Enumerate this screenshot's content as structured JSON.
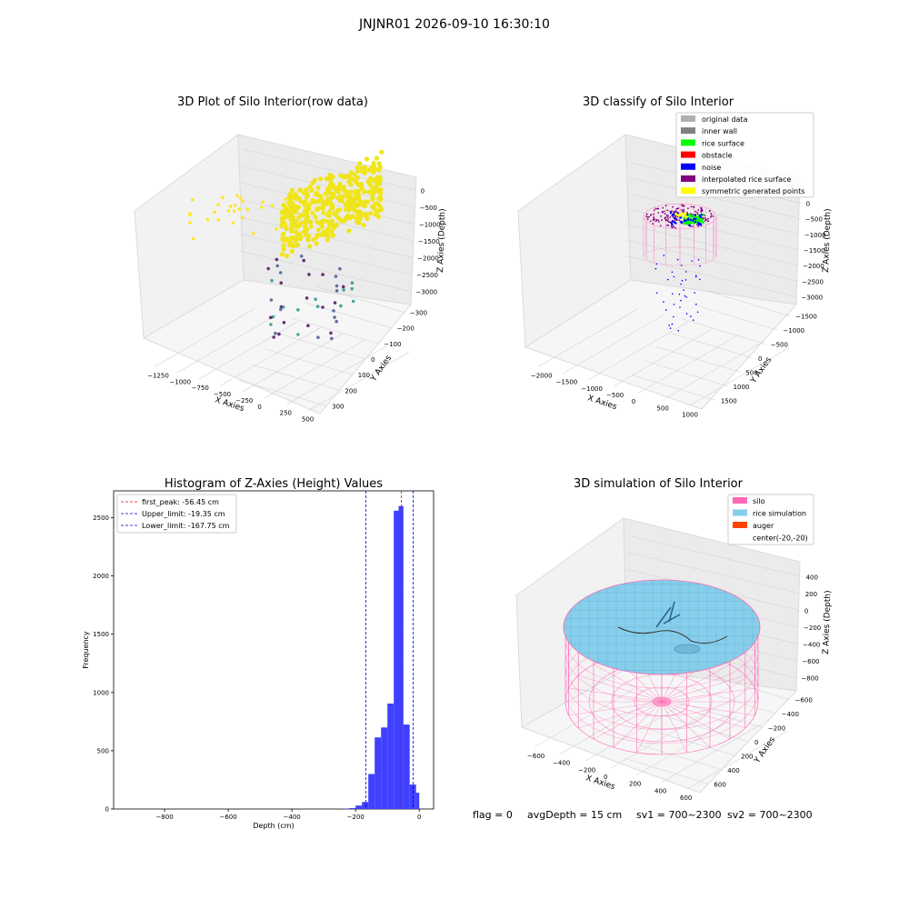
{
  "figure": {
    "suptitle": "JNJNR01 2026-09-10 16:30:10",
    "status_line": {
      "flag": "flag = 0",
      "avg_depth": "avgDepth = 15 cm",
      "sv1": "sv1 = 700~2300",
      "sv2": "sv2 = 700~2300"
    }
  },
  "chart_data": [
    {
      "type": "scatter",
      "title": "3D Plot of Silo Interior(row data)",
      "xlabel": "X Axies",
      "ylabel": "Y Axies",
      "zlabel": "Z Axies (Depth)",
      "x_ticks": [
        "−1250",
        "−1000",
        "−750",
        "−500",
        "−250",
        "0",
        "250",
        "500"
      ],
      "y_ticks": [
        "−300",
        "−200",
        "−100",
        "0",
        "100",
        "200",
        "300"
      ],
      "z_ticks": [
        "0",
        "−500",
        "−1000",
        "−1500",
        "−2000",
        "−2500",
        "−3000"
      ],
      "colormap": "viridis"
    },
    {
      "type": "scatter",
      "title": "3D classify of Silo Interior",
      "xlabel": "X Axies",
      "ylabel": "Y Axies",
      "zlabel": "Z Axies (Depth)",
      "x_ticks": [
        "−2000",
        "−1500",
        "−1000",
        "−500",
        "0",
        "500",
        "1000"
      ],
      "y_ticks": [
        "−1500",
        "−1000",
        "−500",
        "0",
        "500",
        "1000",
        "1500"
      ],
      "z_ticks": [
        "0",
        "−500",
        "−1000",
        "−1500",
        "−2000",
        "−2500",
        "−3000"
      ],
      "legend_position": "top-right",
      "legend": [
        {
          "label": "original data",
          "color": "#b0b0b0"
        },
        {
          "label": "inner wall",
          "color": "#808080"
        },
        {
          "label": "rice surface",
          "color": "#00ff00"
        },
        {
          "label": "obstacle",
          "color": "#ff0000"
        },
        {
          "label": "noise",
          "color": "#0000ff"
        },
        {
          "label": "interpolated rice surface",
          "color": "#800080"
        },
        {
          "label": "symmetric generated points",
          "color": "#ffff00"
        }
      ]
    },
    {
      "type": "bar",
      "title": "Histogram of Z-Axies (Height) Values",
      "xlabel": "Depth (cm)",
      "ylabel": "Frequency",
      "xlim": [
        -960,
        45
      ],
      "ylim": [
        0,
        2730
      ],
      "x_ticks": [
        -800,
        -600,
        -400,
        -200,
        0
      ],
      "x_tick_labels": [
        "−800",
        "−600",
        "−400",
        "−200",
        "0"
      ],
      "y_ticks": [
        0,
        500,
        1000,
        1500,
        2000,
        2500
      ],
      "bar_color": "#4040ff",
      "bins": [
        {
          "x0": -240,
          "x1": -220,
          "v": 2
        },
        {
          "x0": -220,
          "x1": -200,
          "v": 8
        },
        {
          "x0": -200,
          "x1": -180,
          "v": 30
        },
        {
          "x0": -180,
          "x1": -160,
          "v": 60
        },
        {
          "x0": -160,
          "x1": -140,
          "v": 300
        },
        {
          "x0": -140,
          "x1": -120,
          "v": 615
        },
        {
          "x0": -120,
          "x1": -100,
          "v": 700
        },
        {
          "x0": -100,
          "x1": -80,
          "v": 905
        },
        {
          "x0": -80,
          "x1": -65,
          "v": 2560
        },
        {
          "x0": -65,
          "x1": -50,
          "v": 2600
        },
        {
          "x0": -50,
          "x1": -30,
          "v": 725
        },
        {
          "x0": -30,
          "x1": -10,
          "v": 210
        },
        {
          "x0": -10,
          "x1": 0,
          "v": 140
        }
      ],
      "vlines": [
        {
          "label": "first_peak: -56.45 cm",
          "x": -56.45,
          "color": "#ff0000"
        },
        {
          "label": "Upper_limit: -19.35 cm",
          "x": -19.35,
          "color": "#0000cc"
        },
        {
          "label": "Lower_limit: -167.75 cm",
          "x": -167.75,
          "color": "#0000cc"
        }
      ],
      "legend_position": "top-left"
    },
    {
      "type": "scatter",
      "title": "3D simulation of Silo Interior",
      "xlabel": "X Axies",
      "ylabel": "Y Axies",
      "zlabel": "Z Axies (Depth)",
      "x_ticks": [
        "−600",
        "−400",
        "−200",
        "0",
        "200",
        "400",
        "600"
      ],
      "y_ticks": [
        "−600",
        "−400",
        "−200",
        "0",
        "200",
        "400",
        "600"
      ],
      "z_ticks": [
        "400",
        "200",
        "0",
        "−200",
        "−400",
        "−600",
        "−800"
      ],
      "legend_position": "top-right",
      "legend": [
        {
          "label": "silo",
          "color": "#ff69b4"
        },
        {
          "label": "rice simulation",
          "color": "#87ceeb"
        },
        {
          "label": "auger",
          "color": "#ff4500"
        },
        {
          "label": "center(-20,-20)",
          "color": ""
        }
      ]
    }
  ]
}
